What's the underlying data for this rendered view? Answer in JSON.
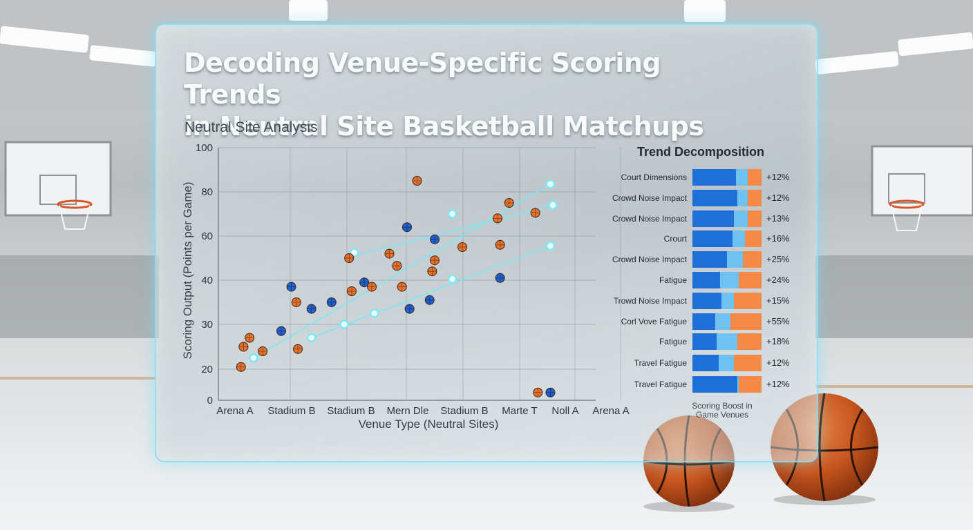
{
  "title_line1": "Decoding Venue-Specific Scoring Trends",
  "title_line2": "in Neutral Site Basketball Matchups",
  "subtitle": "Neutral Site Analysis",
  "colors": {
    "orange": "#e8712a",
    "blue": "#1f5fcf",
    "trend": "#7fe6f4",
    "panel_border": "#82e1f5"
  },
  "chart_data": {
    "type": "scatter",
    "title": "",
    "xlabel": "Venue Type (Neutral Sites)",
    "ylabel": "Scoring Output (Points per Game)",
    "categories": [
      "Arena A",
      "Stadium B",
      "Stadium B",
      "Mern Dle",
      "Stadium B",
      "Marte T",
      "Noll A",
      "Arena A"
    ],
    "y_ticks": [
      0,
      20,
      30,
      40,
      60,
      80,
      100
    ],
    "ylim": [
      0,
      100
    ],
    "xlim": [
      0,
      7.5
    ],
    "grid": true,
    "legend": "bottom-right",
    "series": [
      {
        "marker": "orange",
        "points": [
          [
            0.45,
            20.5
          ],
          [
            0.5,
            25
          ],
          [
            0.62,
            27
          ],
          [
            0.88,
            24
          ],
          [
            1.58,
            24.5
          ],
          [
            1.55,
            35
          ],
          [
            2.6,
            50
          ],
          [
            2.65,
            37.5
          ],
          [
            3.05,
            38.5
          ],
          [
            3.4,
            52
          ],
          [
            3.55,
            46.5
          ],
          [
            3.65,
            38.5
          ],
          [
            3.95,
            85
          ],
          [
            4.25,
            44
          ],
          [
            4.3,
            49
          ],
          [
            4.85,
            55
          ],
          [
            5.55,
            68
          ],
          [
            5.6,
            56
          ],
          [
            5.78,
            75
          ],
          [
            6.3,
            70.5
          ],
          [
            6.35,
            5
          ]
        ]
      },
      {
        "marker": "blue",
        "points": [
          [
            1.45,
            38.5
          ],
          [
            1.25,
            28.5
          ],
          [
            1.85,
            33.5
          ],
          [
            2.25,
            35
          ],
          [
            2.9,
            39.5
          ],
          [
            3.75,
            64
          ],
          [
            3.8,
            33.5
          ],
          [
            4.2,
            35.5
          ],
          [
            4.3,
            58.5
          ],
          [
            5.6,
            41
          ],
          [
            6.6,
            5
          ]
        ]
      }
    ],
    "trend_lines": [
      {
        "points": [
          [
            0.7,
            22.5
          ],
          [
            6.6,
            83.5
          ]
        ],
        "markers": [
          [
            0.7,
            22.5
          ],
          [
            6.6,
            83.5
          ]
        ]
      },
      {
        "points": [
          [
            2.7,
            51
          ],
          [
            6.65,
            74
          ]
        ],
        "markers": [
          [
            2.7,
            52.5
          ],
          [
            4.65,
            70
          ],
          [
            6.65,
            74
          ]
        ]
      },
      {
        "points": [
          [
            1.85,
            27
          ],
          [
            6.6,
            55.5
          ]
        ],
        "markers": [
          [
            1.85,
            27
          ],
          [
            2.5,
            30
          ],
          [
            3.1,
            32.5
          ],
          [
            4.65,
            40.5
          ],
          [
            6.6,
            55.5
          ]
        ]
      }
    ]
  },
  "trend": {
    "title": "Trend Decomposition",
    "footer": "Scoring Boost in Game Venues",
    "rows": [
      {
        "label": "Court Dimensions",
        "value": "+12%",
        "segments": [
          0.63,
          0.17,
          0.2
        ]
      },
      {
        "label": "Crowd Noise Impact",
        "value": "+12%",
        "segments": [
          0.65,
          0.15,
          0.2
        ]
      },
      {
        "label": "Crowd Noise Impact",
        "value": "+13%",
        "segments": [
          0.6,
          0.2,
          0.2
        ]
      },
      {
        "label": "Crourt",
        "value": "+16%",
        "segments": [
          0.58,
          0.18,
          0.24
        ]
      },
      {
        "label": "Crowd Noise Impact",
        "value": "+25%",
        "segments": [
          0.5,
          0.23,
          0.27
        ]
      },
      {
        "label": "Fatigue",
        "value": "+24%",
        "segments": [
          0.4,
          0.27,
          0.33
        ]
      },
      {
        "label": "Trowd Noise Impact",
        "value": "+15%",
        "segments": [
          0.42,
          0.18,
          0.4
        ]
      },
      {
        "label": "Corl Vove Fatigue",
        "value": "+55%",
        "segments": [
          0.33,
          0.22,
          0.45
        ]
      },
      {
        "label": "Fatigue",
        "value": "+18%",
        "segments": [
          0.35,
          0.3,
          0.35
        ]
      },
      {
        "label": "Travel Fatigue",
        "value": "+12%",
        "segments": [
          0.38,
          0.22,
          0.4
        ]
      },
      {
        "label": "Travel Fatigue",
        "value": "+12%",
        "segments": [
          0.65,
          0.02,
          0.33
        ]
      }
    ]
  }
}
